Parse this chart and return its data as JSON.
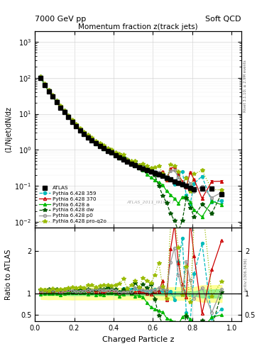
{
  "title_top_left": "7000 GeV pp",
  "title_top_right": "Soft QCD",
  "main_title": "Momentum fraction z(track jets)",
  "xlabel": "Charged Particle z",
  "ylabel_main": "(1/Njet)dN/dz",
  "ylabel_ratio": "Ratio to ATLAS",
  "right_label_top": "Rivet 3.1.10; ≥ 2.9M events",
  "right_label_bottom": "[arXiv:1306.3436]",
  "watermark": "ATLAS_2011_I919017",
  "xlim": [
    0.0,
    1.05
  ],
  "ylim_main": [
    0.007,
    2000
  ],
  "ylim_ratio": [
    0.35,
    2.55
  ],
  "ratio_yticks": [
    0.5,
    1.0,
    2.0
  ],
  "atlas_z": [
    0.03,
    0.05,
    0.07,
    0.09,
    0.11,
    0.13,
    0.15,
    0.17,
    0.19,
    0.21,
    0.23,
    0.25,
    0.27,
    0.29,
    0.31,
    0.33,
    0.35,
    0.37,
    0.39,
    0.41,
    0.43,
    0.45,
    0.47,
    0.49,
    0.51,
    0.53,
    0.55,
    0.57,
    0.59,
    0.61,
    0.63,
    0.65,
    0.67,
    0.69,
    0.71,
    0.73,
    0.75,
    0.77,
    0.79,
    0.81,
    0.85,
    0.9,
    0.95
  ],
  "atlas_y": [
    100,
    62,
    42,
    30,
    21,
    15,
    11,
    8.0,
    6.0,
    4.5,
    3.5,
    2.8,
    2.2,
    1.8,
    1.5,
    1.3,
    1.1,
    0.95,
    0.85,
    0.72,
    0.62,
    0.55,
    0.48,
    0.42,
    0.38,
    0.33,
    0.3,
    0.27,
    0.25,
    0.23,
    0.21,
    0.19,
    0.17,
    0.15,
    0.13,
    0.12,
    0.11,
    0.1,
    0.09,
    0.08,
    0.085,
    0.085,
    0.06
  ],
  "atlas_yerr": [
    3,
    2,
    1.5,
    1.0,
    0.7,
    0.5,
    0.4,
    0.3,
    0.25,
    0.18,
    0.14,
    0.11,
    0.09,
    0.07,
    0.06,
    0.05,
    0.04,
    0.035,
    0.03,
    0.025,
    0.022,
    0.02,
    0.018,
    0.016,
    0.015,
    0.013,
    0.012,
    0.011,
    0.01,
    0.009,
    0.008,
    0.008,
    0.007,
    0.007,
    0.006,
    0.006,
    0.005,
    0.005,
    0.005,
    0.004,
    0.008,
    0.008,
    0.006
  ],
  "colors": {
    "atlas": "#000000",
    "p359": "#00BBBB",
    "p370": "#CC0000",
    "pa": "#00BB00",
    "pdw": "#005500",
    "pp0": "#999999",
    "pproq2o": "#99BB00"
  },
  "bg_color": "#ffffff",
  "legend_entries": [
    "ATLAS",
    "Pythia 6.428 359",
    "Pythia 6.428 370",
    "Pythia 6.428 a",
    "Pythia 6.428 dw",
    "Pythia 6.428 p0",
    "Pythia 6.428 pro-q2o"
  ]
}
